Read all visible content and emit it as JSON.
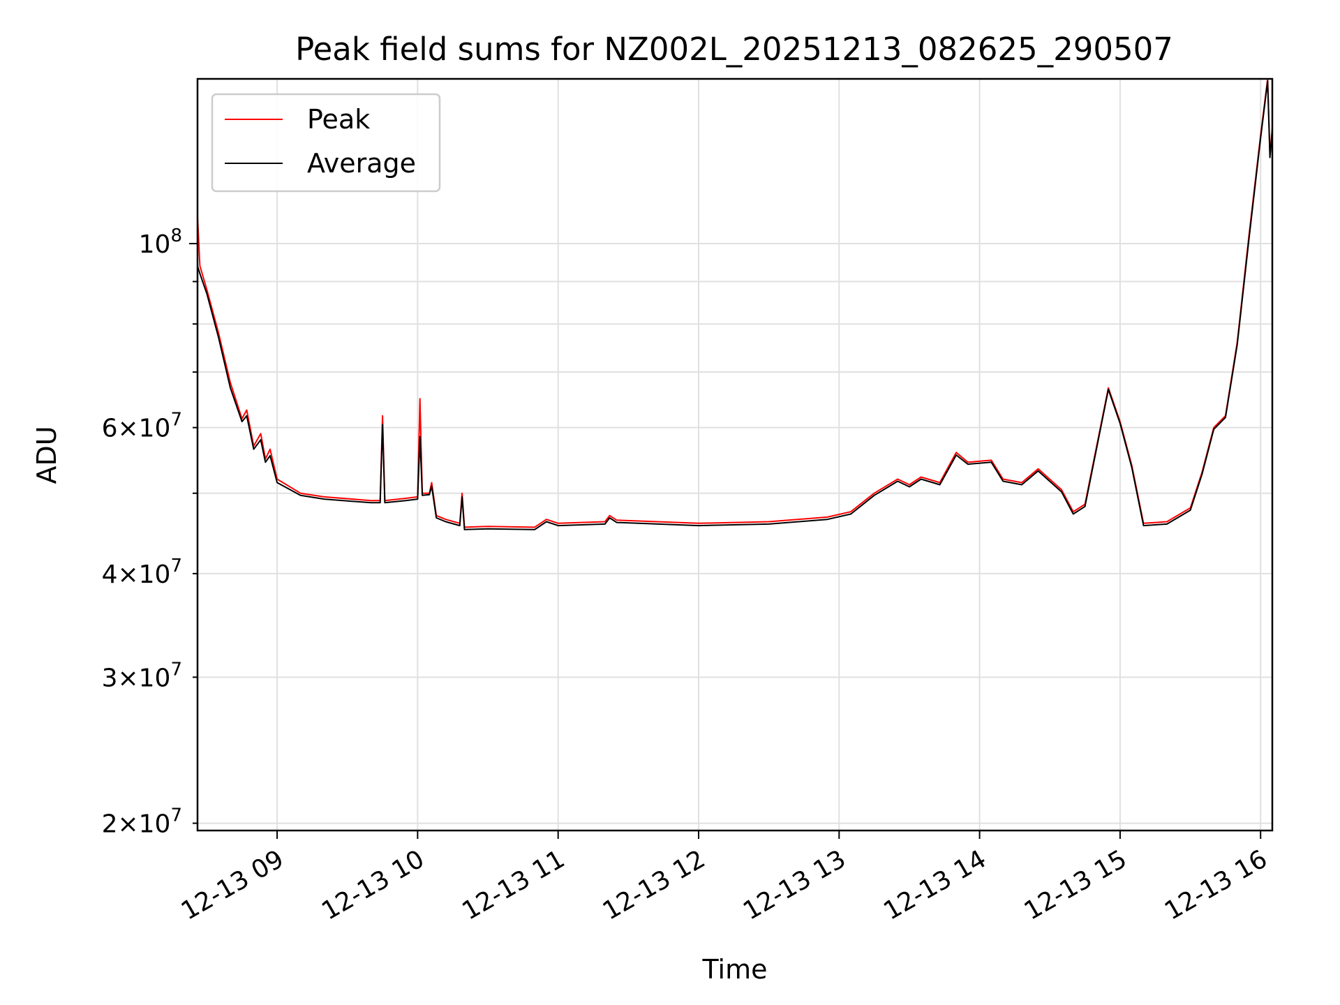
{
  "chart_data": {
    "type": "line",
    "title": "Peak field sums for NZ002L_20251213_082625_290507",
    "xlabel": "Time",
    "ylabel": "ADU",
    "y_scale": "log",
    "grid": true,
    "legend_position": "top-left",
    "xlim": [
      "2025-12-13 08:26",
      "2025-12-13 16:05"
    ],
    "ylim": [
      19600000,
      158000000
    ],
    "x_ticks": [
      {
        "value": "2025-12-13 09:00",
        "label": "12-13 09"
      },
      {
        "value": "2025-12-13 10:00",
        "label": "12-13 10"
      },
      {
        "value": "2025-12-13 11:00",
        "label": "12-13 11"
      },
      {
        "value": "2025-12-13 12:00",
        "label": "12-13 12"
      },
      {
        "value": "2025-12-13 13:00",
        "label": "12-13 13"
      },
      {
        "value": "2025-12-13 14:00",
        "label": "12-13 14"
      },
      {
        "value": "2025-12-13 15:00",
        "label": "12-13 15"
      },
      {
        "value": "2025-12-13 16:00",
        "label": "12-13 16"
      }
    ],
    "y_ticks_major": [
      {
        "value": 100000000,
        "base": "10",
        "exp": "8"
      }
    ],
    "y_ticks_minor": [
      {
        "value": 20000000,
        "mant": "2",
        "exp": "7"
      },
      {
        "value": 30000000,
        "mant": "3",
        "exp": "7"
      },
      {
        "value": 40000000,
        "mant": "4",
        "exp": "7"
      },
      {
        "value": 60000000,
        "mant": "6",
        "exp": "7"
      }
    ],
    "y_ticks_unlabeled": [
      50000000,
      70000000,
      80000000,
      90000000
    ],
    "series": [
      {
        "name": "Peak",
        "color": "#ff0000",
        "points": [
          [
            "2025-12-13 08:26",
            108000000
          ],
          [
            "2025-12-13 08:27",
            94000000
          ],
          [
            "2025-12-13 08:30",
            88000000
          ],
          [
            "2025-12-13 08:35",
            78000000
          ],
          [
            "2025-12-13 08:40",
            68000000
          ],
          [
            "2025-12-13 08:45",
            61500000
          ],
          [
            "2025-12-13 08:47",
            63000000
          ],
          [
            "2025-12-13 08:50",
            57000000
          ],
          [
            "2025-12-13 08:53",
            59000000
          ],
          [
            "2025-12-13 08:55",
            55000000
          ],
          [
            "2025-12-13 08:57",
            56500000
          ],
          [
            "2025-12-13 09:00",
            52000000
          ],
          [
            "2025-12-13 09:10",
            50000000
          ],
          [
            "2025-12-13 09:20",
            49500000
          ],
          [
            "2025-12-13 09:40",
            49000000
          ],
          [
            "2025-12-13 09:44",
            49000000
          ],
          [
            "2025-12-13 09:45",
            62000000
          ],
          [
            "2025-12-13 09:46",
            49000000
          ],
          [
            "2025-12-13 09:55",
            49300000
          ],
          [
            "2025-12-13 10:00",
            49500000
          ],
          [
            "2025-12-13 10:01",
            65000000
          ],
          [
            "2025-12-13 10:02",
            50000000
          ],
          [
            "2025-12-13 10:05",
            50000000
          ],
          [
            "2025-12-13 10:06",
            51500000
          ],
          [
            "2025-12-13 10:08",
            47000000
          ],
          [
            "2025-12-13 10:12",
            46500000
          ],
          [
            "2025-12-13 10:18",
            46000000
          ],
          [
            "2025-12-13 10:19",
            50000000
          ],
          [
            "2025-12-13 10:20",
            45500000
          ],
          [
            "2025-12-13 10:30",
            45600000
          ],
          [
            "2025-12-13 10:50",
            45500000
          ],
          [
            "2025-12-13 10:55",
            46500000
          ],
          [
            "2025-12-13 11:00",
            46000000
          ],
          [
            "2025-12-13 11:20",
            46200000
          ],
          [
            "2025-12-13 11:22",
            47000000
          ],
          [
            "2025-12-13 11:25",
            46400000
          ],
          [
            "2025-12-13 12:00",
            46000000
          ],
          [
            "2025-12-13 12:30",
            46200000
          ],
          [
            "2025-12-13 12:55",
            46800000
          ],
          [
            "2025-12-13 13:05",
            47500000
          ],
          [
            "2025-12-13 13:15",
            50000000
          ],
          [
            "2025-12-13 13:25",
            52000000
          ],
          [
            "2025-12-13 13:30",
            51200000
          ],
          [
            "2025-12-13 13:35",
            52300000
          ],
          [
            "2025-12-13 13:43",
            51500000
          ],
          [
            "2025-12-13 13:50",
            56000000
          ],
          [
            "2025-12-13 13:55",
            54500000
          ],
          [
            "2025-12-13 14:05",
            54800000
          ],
          [
            "2025-12-13 14:10",
            52000000
          ],
          [
            "2025-12-13 14:18",
            51500000
          ],
          [
            "2025-12-13 14:25",
            53500000
          ],
          [
            "2025-12-13 14:35",
            50500000
          ],
          [
            "2025-12-13 14:40",
            47500000
          ],
          [
            "2025-12-13 14:45",
            48500000
          ],
          [
            "2025-12-13 14:55",
            67000000
          ],
          [
            "2025-12-13 15:00",
            61000000
          ],
          [
            "2025-12-13 15:05",
            54000000
          ],
          [
            "2025-12-13 15:10",
            46000000
          ],
          [
            "2025-12-13 15:20",
            46200000
          ],
          [
            "2025-12-13 15:30",
            48000000
          ],
          [
            "2025-12-13 15:35",
            53000000
          ],
          [
            "2025-12-13 15:40",
            60000000
          ],
          [
            "2025-12-13 15:45",
            62000000
          ],
          [
            "2025-12-13 15:50",
            76000000
          ],
          [
            "2025-12-13 15:55",
            102000000
          ],
          [
            "2025-12-13 16:00",
            135000000
          ],
          [
            "2025-12-13 16:03",
            158000000
          ],
          [
            "2025-12-13 16:04",
            128000000
          ],
          [
            "2025-12-13 16:05",
            138000000
          ]
        ]
      },
      {
        "name": "Average",
        "color": "#000000",
        "points": [
          [
            "2025-12-13 08:26",
            94000000
          ],
          [
            "2025-12-13 08:27",
            92000000
          ],
          [
            "2025-12-13 08:30",
            87000000
          ],
          [
            "2025-12-13 08:35",
            77000000
          ],
          [
            "2025-12-13 08:40",
            67000000
          ],
          [
            "2025-12-13 08:45",
            61000000
          ],
          [
            "2025-12-13 08:47",
            62000000
          ],
          [
            "2025-12-13 08:50",
            56500000
          ],
          [
            "2025-12-13 08:53",
            58000000
          ],
          [
            "2025-12-13 08:55",
            54500000
          ],
          [
            "2025-12-13 08:57",
            55500000
          ],
          [
            "2025-12-13 09:00",
            51500000
          ],
          [
            "2025-12-13 09:10",
            49700000
          ],
          [
            "2025-12-13 09:20",
            49200000
          ],
          [
            "2025-12-13 09:40",
            48700000
          ],
          [
            "2025-12-13 09:44",
            48700000
          ],
          [
            "2025-12-13 09:45",
            60500000
          ],
          [
            "2025-12-13 09:46",
            48700000
          ],
          [
            "2025-12-13 09:55",
            49000000
          ],
          [
            "2025-12-13 10:00",
            49200000
          ],
          [
            "2025-12-13 10:01",
            58500000
          ],
          [
            "2025-12-13 10:02",
            49700000
          ],
          [
            "2025-12-13 10:05",
            49800000
          ],
          [
            "2025-12-13 10:06",
            51000000
          ],
          [
            "2025-12-13 10:08",
            46700000
          ],
          [
            "2025-12-13 10:12",
            46200000
          ],
          [
            "2025-12-13 10:18",
            45700000
          ],
          [
            "2025-12-13 10:19",
            49500000
          ],
          [
            "2025-12-13 10:20",
            45200000
          ],
          [
            "2025-12-13 10:30",
            45300000
          ],
          [
            "2025-12-13 10:50",
            45200000
          ],
          [
            "2025-12-13 10:55",
            46200000
          ],
          [
            "2025-12-13 11:00",
            45700000
          ],
          [
            "2025-12-13 11:20",
            45900000
          ],
          [
            "2025-12-13 11:22",
            46700000
          ],
          [
            "2025-12-13 11:25",
            46100000
          ],
          [
            "2025-12-13 12:00",
            45700000
          ],
          [
            "2025-12-13 12:30",
            45900000
          ],
          [
            "2025-12-13 12:55",
            46500000
          ],
          [
            "2025-12-13 13:05",
            47200000
          ],
          [
            "2025-12-13 13:15",
            49700000
          ],
          [
            "2025-12-13 13:25",
            51700000
          ],
          [
            "2025-12-13 13:30",
            50900000
          ],
          [
            "2025-12-13 13:35",
            52000000
          ],
          [
            "2025-12-13 13:43",
            51200000
          ],
          [
            "2025-12-13 13:50",
            55600000
          ],
          [
            "2025-12-13 13:55",
            54200000
          ],
          [
            "2025-12-13 14:05",
            54500000
          ],
          [
            "2025-12-13 14:10",
            51700000
          ],
          [
            "2025-12-13 14:18",
            51200000
          ],
          [
            "2025-12-13 14:25",
            53200000
          ],
          [
            "2025-12-13 14:35",
            50200000
          ],
          [
            "2025-12-13 14:40",
            47200000
          ],
          [
            "2025-12-13 14:45",
            48200000
          ],
          [
            "2025-12-13 14:55",
            66700000
          ],
          [
            "2025-12-13 15:00",
            60700000
          ],
          [
            "2025-12-13 15:05",
            53700000
          ],
          [
            "2025-12-13 15:10",
            45700000
          ],
          [
            "2025-12-13 15:20",
            45900000
          ],
          [
            "2025-12-13 15:30",
            47700000
          ],
          [
            "2025-12-13 15:35",
            52700000
          ],
          [
            "2025-12-13 15:40",
            59700000
          ],
          [
            "2025-12-13 15:45",
            61700000
          ],
          [
            "2025-12-13 15:50",
            75500000
          ],
          [
            "2025-12-13 15:55",
            101000000
          ],
          [
            "2025-12-13 16:00",
            134000000
          ],
          [
            "2025-12-13 16:03",
            157000000
          ],
          [
            "2025-12-13 16:04",
            127000000
          ],
          [
            "2025-12-13 16:05",
            137000000
          ]
        ]
      }
    ]
  }
}
